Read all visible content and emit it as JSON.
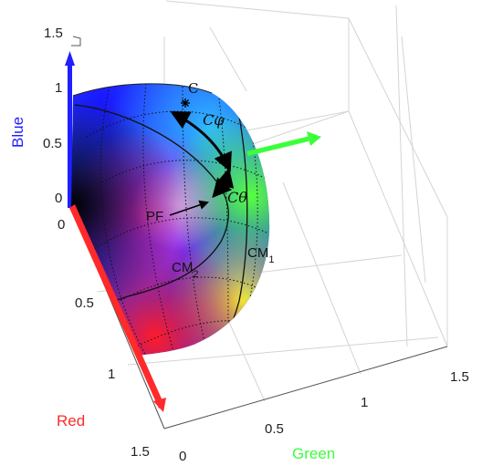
{
  "axes": {
    "red": {
      "label": "Red",
      "color": "#ff2a2a",
      "ticks": [
        "0",
        "0.5",
        "1",
        "1.5"
      ]
    },
    "green": {
      "label": "Green",
      "color": "#3bff3b",
      "ticks": [
        "0",
        "0.5",
        "1",
        "1.5"
      ]
    },
    "blue": {
      "label": "Blue",
      "color": "#1f1fff",
      "ticks": [
        "0",
        "0.5",
        "1",
        "1.5"
      ]
    }
  },
  "annotations": {
    "c_point": "C",
    "c_phi": "Cφ",
    "c_theta": "Cθ",
    "pf": "PF",
    "cm1_main": "CM",
    "cm1_sub": "1",
    "cm2_main": "CM",
    "cm2_sub": "2"
  },
  "colors": {
    "sphere_blue": "#2020ff",
    "sphere_magenta": "#ff1fd0",
    "sphere_red": "#ff1530",
    "sphere_green": "#60ff50",
    "sphere_yellow": "#e8f040",
    "sphere_black": "#000000"
  }
}
